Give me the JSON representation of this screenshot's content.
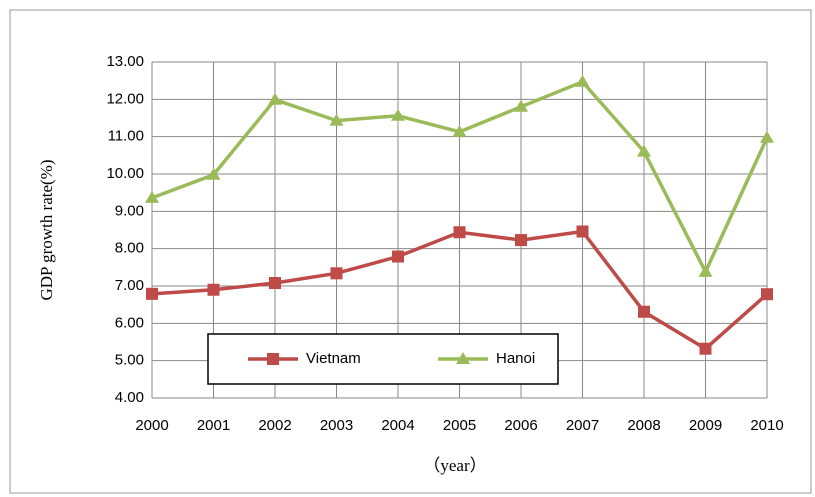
{
  "chart_data": {
    "type": "line",
    "categories": [
      "2000",
      "2001",
      "2002",
      "2003",
      "2004",
      "2005",
      "2006",
      "2007",
      "2008",
      "2009",
      "2010"
    ],
    "series": [
      {
        "name": "Vietnam",
        "color": "#be4b48",
        "marker": "square",
        "values": [
          6.79,
          6.9,
          7.08,
          7.34,
          7.79,
          8.44,
          8.23,
          8.46,
          6.31,
          5.32,
          6.78
        ]
      },
      {
        "name": "Hanoi",
        "color": "#9bbb59",
        "marker": "triangle",
        "values": [
          9.36,
          9.98,
          11.99,
          11.43,
          11.56,
          11.13,
          11.8,
          12.47,
          10.6,
          7.38,
          10.97
        ]
      }
    ],
    "ylabel": "GDP growth rate(%)",
    "xlabel": "（year）",
    "ylim": [
      4,
      13
    ],
    "yticks": [
      {
        "value": 4,
        "label": "4.00"
      },
      {
        "value": 5,
        "label": "5.00"
      },
      {
        "value": 6,
        "label": "6.00"
      },
      {
        "value": 7,
        "label": "7.00"
      },
      {
        "value": 8,
        "label": "8.00"
      },
      {
        "value": 9,
        "label": "9.00"
      },
      {
        "value": 10,
        "label": "10.00"
      },
      {
        "value": 11,
        "label": "11.00"
      },
      {
        "value": 12,
        "label": "12.00"
      },
      {
        "value": 13,
        "label": "13.00"
      }
    ],
    "grid": true,
    "legend": "lower center"
  }
}
